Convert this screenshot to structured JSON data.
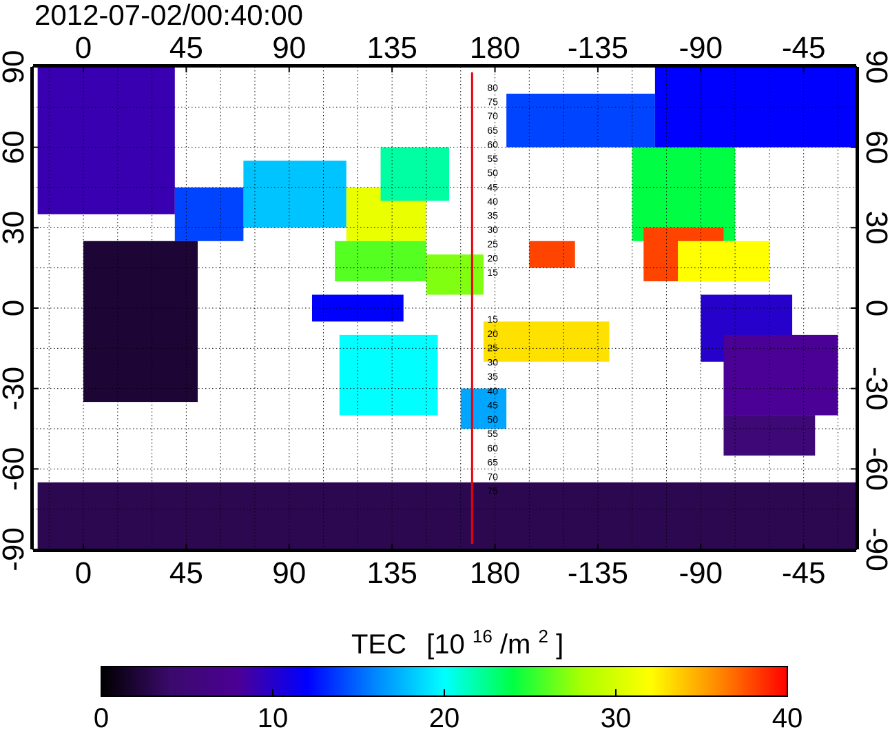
{
  "timestamp": "2012-07-02/00:40:00",
  "map": {
    "lon_ticks": [
      0,
      45,
      90,
      135,
      180,
      -135,
      -90,
      -45
    ],
    "lat_ticks": [
      90,
      60,
      30,
      0,
      -30,
      -60,
      -90
    ],
    "lon_range": [
      -22,
      338
    ],
    "lat_range": [
      -90,
      90
    ],
    "grid_lon": [
      -15,
      0,
      15,
      30,
      45,
      60,
      75,
      90,
      105,
      120,
      135,
      150,
      165,
      180,
      195,
      210,
      225,
      240,
      255,
      270,
      285,
      300,
      315,
      330
    ],
    "grid_lat": [
      -75,
      -60,
      -45,
      -30,
      -15,
      0,
      15,
      30,
      45,
      60,
      75,
      90
    ],
    "meridian_line": {
      "lon": 170,
      "color": "#e8000b"
    },
    "contour_labels": {
      "north": [
        "80",
        "75",
        "70",
        "65",
        "60",
        "55",
        "50",
        "45",
        "40",
        "35",
        "30",
        "25",
        "20",
        "15"
      ],
      "south": [
        "15",
        "20",
        "25",
        "30",
        "35",
        "40",
        "45",
        "50",
        "55",
        "60",
        "65",
        "70",
        "75"
      ]
    }
  },
  "colorbar": {
    "title": "TEC",
    "unit_prefix": "[10",
    "unit_exp": "16",
    "unit_mid": "/m",
    "unit_exp2": "2",
    "unit_suffix": "]",
    "min": 0,
    "max": 40,
    "tick_values": [
      0,
      10,
      20,
      30,
      40
    ],
    "tick_labels": [
      "0",
      "10",
      "20",
      "30",
      "40"
    ],
    "colors": [
      "#000000",
      "#3a0a6b",
      "#4b0096",
      "#0000ff",
      "#0088ff",
      "#00ffff",
      "#00ff44",
      "#aaff00",
      "#ffff00",
      "#ff8800",
      "#ff0000"
    ]
  },
  "chart_data": {
    "type": "heatmap",
    "title": "2012-07-02/00:40:00",
    "xlabel": "",
    "ylabel": "",
    "variable": "TEC",
    "unit": "10^16/m^2",
    "xlim": [
      -22,
      338
    ],
    "ylim": [
      -90,
      90
    ],
    "clim": [
      0,
      40
    ],
    "regions": [
      {
        "lon": [
          -20,
          40
        ],
        "lat": [
          35,
          90
        ],
        "value": 9
      },
      {
        "lon": [
          40,
          70
        ],
        "lat": [
          25,
          45
        ],
        "value": 14
      },
      {
        "lon": [
          70,
          115
        ],
        "lat": [
          30,
          55
        ],
        "value": 18
      },
      {
        "lon": [
          115,
          150
        ],
        "lat": [
          25,
          45
        ],
        "value": 31
      },
      {
        "lon": [
          130,
          160
        ],
        "lat": [
          40,
          60
        ],
        "value": 22
      },
      {
        "lon": [
          110,
          150
        ],
        "lat": [
          10,
          25
        ],
        "value": 26
      },
      {
        "lon": [
          150,
          175
        ],
        "lat": [
          5,
          20
        ],
        "value": 27
      },
      {
        "lon": [
          100,
          140
        ],
        "lat": [
          -5,
          5
        ],
        "value": 12
      },
      {
        "lon": [
          112,
          155
        ],
        "lat": [
          -40,
          -10
        ],
        "value": 20
      },
      {
        "lon": [
          165,
          185
        ],
        "lat": [
          -45,
          -30
        ],
        "value": 17
      },
      {
        "lon": [
          195,
          215
        ],
        "lat": [
          15,
          25
        ],
        "value": 38
      },
      {
        "lon": [
          175,
          230
        ],
        "lat": [
          -20,
          -5
        ],
        "value": 33
      },
      {
        "lon": [
          185,
          250
        ],
        "lat": [
          60,
          80
        ],
        "value": 14
      },
      {
        "lon": [
          240,
          285
        ],
        "lat": [
          25,
          60
        ],
        "value": 24
      },
      {
        "lon": [
          245,
          280
        ],
        "lat": [
          10,
          30
        ],
        "value": 38
      },
      {
        "lon": [
          260,
          300
        ],
        "lat": [
          10,
          25
        ],
        "value": 32
      },
      {
        "lon": [
          270,
          310
        ],
        "lat": [
          -20,
          5
        ],
        "value": 10
      },
      {
        "lon": [
          280,
          330
        ],
        "lat": [
          -40,
          -10
        ],
        "value": 8
      },
      {
        "lon": [
          280,
          320
        ],
        "lat": [
          -55,
          -40
        ],
        "value": 5
      },
      {
        "lon": [
          0,
          50
        ],
        "lat": [
          -35,
          25
        ],
        "value": 2
      },
      {
        "lon": [
          250,
          340
        ],
        "lat": [
          60,
          90
        ],
        "value": 12
      },
      {
        "lon": [
          -20,
          340
        ],
        "lat": [
          -90,
          -65
        ],
        "value": 3
      }
    ]
  }
}
